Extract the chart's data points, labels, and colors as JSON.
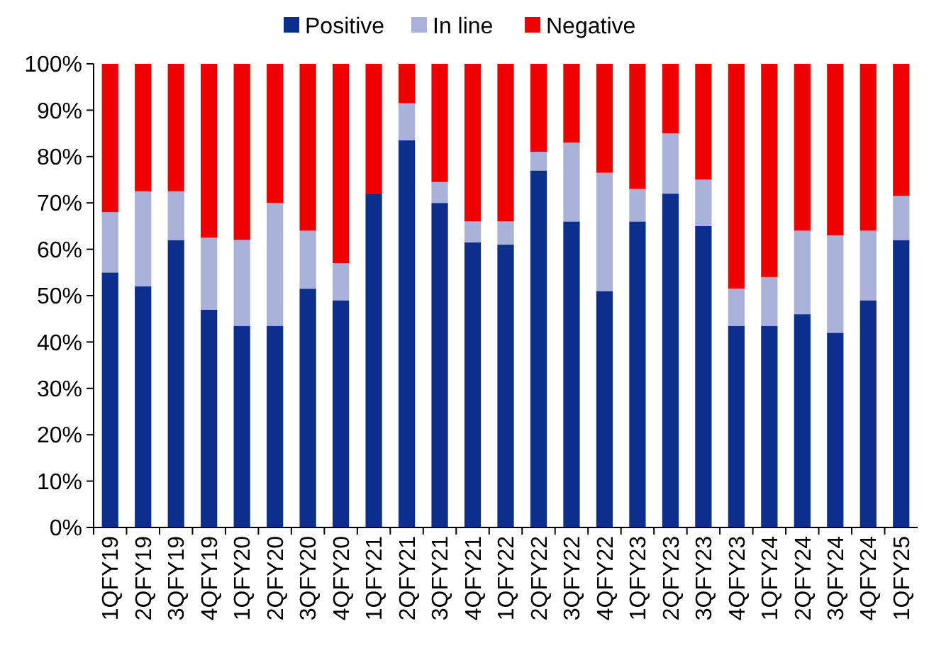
{
  "chart_data": {
    "type": "bar",
    "stacked": true,
    "legend": "top",
    "grid": false,
    "categories": [
      "1QFY19",
      "2QFY19",
      "3QFY19",
      "4QFY19",
      "1QFY20",
      "2QFY20",
      "3QFY20",
      "4QFY20",
      "1QFY21",
      "2QFY21",
      "3QFY21",
      "4QFY21",
      "1QFY22",
      "2QFY22",
      "3QFY22",
      "4QFY22",
      "1QFY23",
      "2QFY23",
      "3QFY23",
      "4QFY23",
      "1QFY24",
      "2QFY24",
      "3QFY24",
      "4QFY24",
      "1QFY25"
    ],
    "series": [
      {
        "name": "Positive",
        "color": "#0c2f8e",
        "values": [
          55,
          52,
          62,
          47,
          43.5,
          43.5,
          51.5,
          49,
          72,
          83.5,
          70,
          61.5,
          61,
          77,
          66,
          51,
          66,
          72,
          65,
          43.5,
          43.5,
          46,
          42,
          49,
          62
        ]
      },
      {
        "name": "In line",
        "color": "#a9b3da",
        "values": [
          13,
          20.5,
          10.5,
          15.5,
          18.5,
          26.5,
          12.5,
          8,
          0,
          8,
          4.5,
          4.5,
          5,
          4,
          17,
          25.5,
          7,
          13,
          10,
          8,
          10.5,
          18,
          21,
          15,
          9.5
        ]
      },
      {
        "name": "Negative",
        "color": "#ee0000",
        "values": [
          32,
          27.5,
          27.5,
          37.5,
          38,
          30,
          36,
          43,
          28,
          8.5,
          25.5,
          34,
          34,
          19,
          17,
          23.5,
          27,
          15,
          25,
          48.5,
          46,
          36,
          37,
          36,
          28.5
        ]
      }
    ],
    "ylim": [
      0,
      100
    ],
    "yticks": [
      {
        "value": 0,
        "label": "0%"
      },
      {
        "value": 10,
        "label": "10%"
      },
      {
        "value": 20,
        "label": "20%"
      },
      {
        "value": 30,
        "label": "30%"
      },
      {
        "value": 40,
        "label": "40%"
      },
      {
        "value": 50,
        "label": "50%"
      },
      {
        "value": 60,
        "label": "60%"
      },
      {
        "value": 70,
        "label": "70%"
      },
      {
        "value": 80,
        "label": "80%"
      },
      {
        "value": 90,
        "label": "90%"
      },
      {
        "value": 100,
        "label": "100%"
      }
    ]
  }
}
